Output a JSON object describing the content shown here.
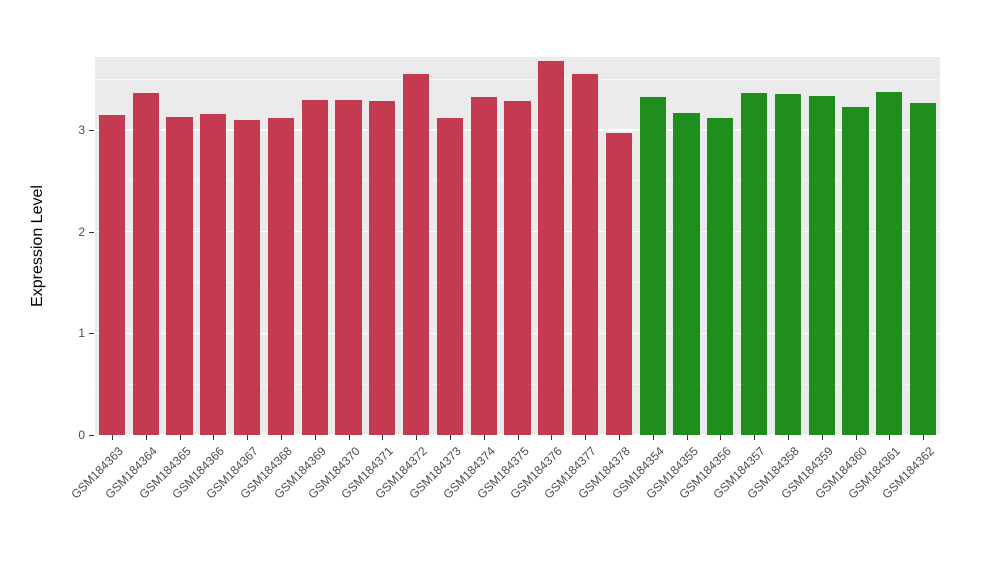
{
  "chart_data": {
    "type": "bar",
    "title": "",
    "xlabel": "",
    "ylabel": "Expression Level",
    "categories": [
      "GSM184363",
      "GSM184364",
      "GSM184365",
      "GSM184366",
      "GSM184367",
      "GSM184368",
      "GSM184369",
      "GSM184370",
      "GSM184371",
      "GSM184372",
      "GSM184373",
      "GSM184374",
      "GSM184375",
      "GSM184376",
      "GSM184377",
      "GSM184378",
      "GSM184354",
      "GSM184355",
      "GSM184356",
      "GSM184357",
      "GSM184358",
      "GSM184359",
      "GSM184360",
      "GSM184361",
      "GSM184362"
    ],
    "values": [
      3.15,
      3.37,
      3.13,
      3.16,
      3.1,
      3.12,
      3.3,
      3.3,
      3.29,
      3.55,
      3.12,
      3.33,
      3.29,
      3.68,
      3.55,
      2.97,
      3.33,
      3.17,
      3.12,
      3.37,
      3.36,
      3.34,
      3.23,
      3.38,
      3.27
    ],
    "bar_groups": [
      "red",
      "red",
      "red",
      "red",
      "red",
      "red",
      "red",
      "red",
      "red",
      "red",
      "red",
      "red",
      "red",
      "red",
      "red",
      "red",
      "green",
      "green",
      "green",
      "green",
      "green",
      "green",
      "green",
      "green",
      "green"
    ],
    "group_colors": {
      "red": "#C43A50",
      "green": "#1F8E1F"
    },
    "yticks": [
      0,
      1,
      2,
      3
    ],
    "minor_yticks": [
      0.5,
      1.5,
      2.5,
      3.5
    ],
    "ylim": [
      0,
      3.72
    ],
    "panel_background": "#EBEBEB",
    "gridline_color": "#FFFFFF",
    "legend": "none",
    "grid": "on"
  }
}
